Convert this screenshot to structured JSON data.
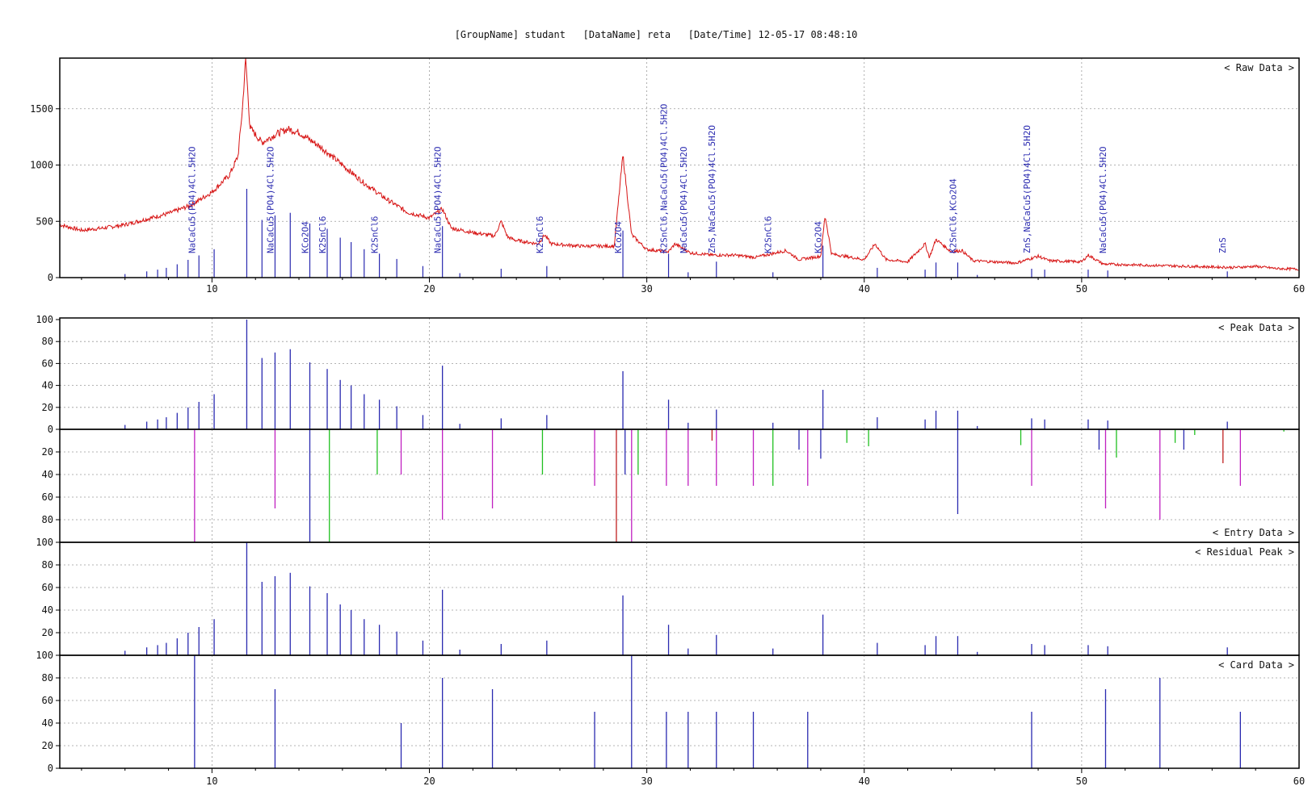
{
  "header": {
    "group_label": "[GroupName]",
    "group_value": "studant",
    "data_label": "[DataName]",
    "data_value": "reta",
    "date_label": "[Date/Time]",
    "date_value": "12-05-17 08:48:10"
  },
  "colors": {
    "raw": "#d71414",
    "card_blue": "#2a2ab0",
    "entry_magenta": "#c020c0",
    "entry_green": "#20c020",
    "entry_red": "#c02020",
    "grid": "#9a9a9a",
    "axis": "#000000"
  },
  "chart_data": [
    {
      "type": "line",
      "panel_label": "< Raw Data >",
      "xlim": [
        3,
        60
      ],
      "ylim": [
        0,
        1950
      ],
      "xticks": [
        10,
        20,
        30,
        40,
        50,
        60
      ],
      "yticks": [
        0,
        500,
        1000,
        1500
      ],
      "raw_profile": [
        [
          3,
          470
        ],
        [
          4,
          420
        ],
        [
          5,
          440
        ],
        [
          6,
          470
        ],
        [
          7,
          520
        ],
        [
          8,
          570
        ],
        [
          9,
          640
        ],
        [
          10,
          760
        ],
        [
          10.8,
          910
        ],
        [
          11.2,
          1080
        ],
        [
          11.4,
          1500
        ],
        [
          11.55,
          1950
        ],
        [
          11.75,
          1330
        ],
        [
          12.3,
          1200
        ],
        [
          13,
          1280
        ],
        [
          13.5,
          1320
        ],
        [
          14,
          1290
        ],
        [
          15,
          1160
        ],
        [
          16,
          1000
        ],
        [
          17,
          840
        ],
        [
          18,
          700
        ],
        [
          19,
          580
        ],
        [
          20,
          530
        ],
        [
          20.6,
          610
        ],
        [
          21,
          440
        ],
        [
          22,
          400
        ],
        [
          23,
          370
        ],
        [
          23.3,
          500
        ],
        [
          23.6,
          360
        ],
        [
          24,
          330
        ],
        [
          25,
          300
        ],
        [
          25.3,
          380
        ],
        [
          25.6,
          300
        ],
        [
          27,
          280
        ],
        [
          28.5,
          280
        ],
        [
          28.9,
          1090
        ],
        [
          29.3,
          380
        ],
        [
          30,
          250
        ],
        [
          31,
          230
        ],
        [
          31.3,
          300
        ],
        [
          32,
          220
        ],
        [
          33,
          200
        ],
        [
          34,
          200
        ],
        [
          35,
          180
        ],
        [
          36.4,
          240
        ],
        [
          37,
          160
        ],
        [
          38,
          190
        ],
        [
          38.2,
          550
        ],
        [
          38.5,
          210
        ],
        [
          40,
          160
        ],
        [
          40.5,
          300
        ],
        [
          41,
          160
        ],
        [
          42,
          140
        ],
        [
          42.8,
          300
        ],
        [
          43,
          180
        ],
        [
          43.3,
          340
        ],
        [
          44,
          230
        ],
        [
          44.5,
          240
        ],
        [
          45,
          150
        ],
        [
          47,
          130
        ],
        [
          48,
          190
        ],
        [
          48.5,
          150
        ],
        [
          50,
          140
        ],
        [
          50.3,
          200
        ],
        [
          51,
          120
        ],
        [
          55,
          100
        ],
        [
          57,
          90
        ],
        [
          58,
          100
        ],
        [
          59,
          80
        ],
        [
          60,
          75
        ]
      ],
      "raw_noise_amplitude": 20,
      "phase_labels": [
        {
          "x": 9.3,
          "text": "NaCaCu5(PO4)4Cl.5H2O"
        },
        {
          "x": 12.9,
          "text": "NaCaCu5(PO4)4Cl.5H2O"
        },
        {
          "x": 14.5,
          "text": "KCo2O4"
        },
        {
          "x": 15.3,
          "text": "K2SnCl6"
        },
        {
          "x": 17.7,
          "text": "K2SnCl6"
        },
        {
          "x": 20.6,
          "text": "NaCaCu5(PO4)4Cl.5H2O"
        },
        {
          "x": 25.3,
          "text": "K2SnCl6"
        },
        {
          "x": 28.9,
          "text": "KCo2O4"
        },
        {
          "x": 31.0,
          "text": "K2SnCl6,NaCaCu5(PO4)4Cl.5H2O"
        },
        {
          "x": 31.9,
          "text": "NaCaCu5(PO4)4Cl.5H2O"
        },
        {
          "x": 33.2,
          "text": "ZnS,NaCaCu5(PO4)4Cl.5H2O"
        },
        {
          "x": 35.8,
          "text": "K2SnCl6"
        },
        {
          "x": 38.1,
          "text": "KCo2O4"
        },
        {
          "x": 44.3,
          "text": "K2SnCl6,KCo2O4"
        },
        {
          "x": 47.7,
          "text": "ZnS,NaCaCu5(PO4)4Cl.5H2O"
        },
        {
          "x": 51.2,
          "text": "NaCaCu5(PO4)4Cl.5H2O"
        },
        {
          "x": 56.7,
          "text": "ZnS"
        }
      ]
    },
    {
      "type": "bar",
      "panel_label": "< Peak Data >",
      "xlim": [
        3,
        60
      ],
      "ylim": [
        0,
        100
      ],
      "yticks": [
        0,
        20,
        40,
        60,
        80,
        100
      ],
      "peaks": [
        [
          6.0,
          4
        ],
        [
          7.0,
          7
        ],
        [
          7.5,
          9
        ],
        [
          7.9,
          11
        ],
        [
          8.4,
          15
        ],
        [
          8.9,
          20
        ],
        [
          9.4,
          25
        ],
        [
          10.1,
          32
        ],
        [
          11.6,
          100
        ],
        [
          12.3,
          65
        ],
        [
          12.9,
          70
        ],
        [
          13.6,
          73
        ],
        [
          14.5,
          61
        ],
        [
          15.3,
          55
        ],
        [
          15.9,
          45
        ],
        [
          16.4,
          40
        ],
        [
          17.0,
          32
        ],
        [
          17.7,
          27
        ],
        [
          18.5,
          21
        ],
        [
          19.7,
          13
        ],
        [
          20.6,
          58
        ],
        [
          21.4,
          5
        ],
        [
          23.3,
          10
        ],
        [
          25.4,
          13
        ],
        [
          28.9,
          53
        ],
        [
          31.0,
          27
        ],
        [
          31.9,
          6
        ],
        [
          33.2,
          18
        ],
        [
          35.8,
          6
        ],
        [
          38.1,
          36
        ],
        [
          40.6,
          11
        ],
        [
          42.8,
          9
        ],
        [
          43.3,
          17
        ],
        [
          44.3,
          17
        ],
        [
          45.2,
          3
        ],
        [
          47.7,
          10
        ],
        [
          48.3,
          9
        ],
        [
          50.3,
          9
        ],
        [
          51.2,
          8
        ],
        [
          56.7,
          7
        ]
      ]
    },
    {
      "type": "bar",
      "panel_label": "< Entry Data >",
      "xlim": [
        3,
        60
      ],
      "ylim": [
        0,
        100
      ],
      "yticks": [
        0,
        20,
        40,
        60,
        80
      ],
      "entries": [
        {
          "x": 9.2,
          "v": 100,
          "c": "magenta"
        },
        {
          "x": 12.9,
          "v": 70,
          "c": "magenta"
        },
        {
          "x": 14.5,
          "v": 100,
          "c": "blue"
        },
        {
          "x": 15.4,
          "v": 100,
          "c": "green"
        },
        {
          "x": 17.6,
          "v": 40,
          "c": "green"
        },
        {
          "x": 18.7,
          "v": 40,
          "c": "magenta"
        },
        {
          "x": 20.6,
          "v": 80,
          "c": "magenta"
        },
        {
          "x": 22.9,
          "v": 70,
          "c": "magenta"
        },
        {
          "x": 25.2,
          "v": 40,
          "c": "green"
        },
        {
          "x": 27.6,
          "v": 50,
          "c": "magenta"
        },
        {
          "x": 28.6,
          "v": 100,
          "c": "red"
        },
        {
          "x": 29.0,
          "v": 40,
          "c": "blue"
        },
        {
          "x": 29.3,
          "v": 100,
          "c": "magenta"
        },
        {
          "x": 29.6,
          "v": 40,
          "c": "green"
        },
        {
          "x": 30.9,
          "v": 50,
          "c": "magenta"
        },
        {
          "x": 31.9,
          "v": 50,
          "c": "magenta"
        },
        {
          "x": 33.0,
          "v": 10,
          "c": "red"
        },
        {
          "x": 33.2,
          "v": 50,
          "c": "magenta"
        },
        {
          "x": 34.9,
          "v": 50,
          "c": "magenta"
        },
        {
          "x": 35.8,
          "v": 50,
          "c": "green"
        },
        {
          "x": 37.0,
          "v": 18,
          "c": "blue"
        },
        {
          "x": 37.4,
          "v": 50,
          "c": "magenta"
        },
        {
          "x": 38.0,
          "v": 26,
          "c": "blue"
        },
        {
          "x": 39.2,
          "v": 12,
          "c": "green"
        },
        {
          "x": 40.2,
          "v": 15,
          "c": "green"
        },
        {
          "x": 44.3,
          "v": 75,
          "c": "blue"
        },
        {
          "x": 47.2,
          "v": 14,
          "c": "green"
        },
        {
          "x": 47.7,
          "v": 50,
          "c": "magenta"
        },
        {
          "x": 50.8,
          "v": 18,
          "c": "blue"
        },
        {
          "x": 51.1,
          "v": 70,
          "c": "magenta"
        },
        {
          "x": 51.6,
          "v": 25,
          "c": "green"
        },
        {
          "x": 53.6,
          "v": 80,
          "c": "magenta"
        },
        {
          "x": 54.3,
          "v": 12,
          "c": "green"
        },
        {
          "x": 54.7,
          "v": 18,
          "c": "blue"
        },
        {
          "x": 55.2,
          "v": 5,
          "c": "green"
        },
        {
          "x": 56.5,
          "v": 30,
          "c": "red"
        },
        {
          "x": 57.3,
          "v": 50,
          "c": "magenta"
        },
        {
          "x": 59.3,
          "v": 2,
          "c": "green"
        }
      ]
    },
    {
      "type": "bar",
      "panel_label": "< Residual Peak >",
      "xlim": [
        3,
        60
      ],
      "ylim": [
        0,
        100
      ],
      "yticks": [
        20,
        40,
        60,
        80,
        100
      ],
      "peaks": [
        [
          6.0,
          4
        ],
        [
          7.0,
          7
        ],
        [
          7.5,
          9
        ],
        [
          7.9,
          11
        ],
        [
          8.4,
          15
        ],
        [
          8.9,
          20
        ],
        [
          9.4,
          25
        ],
        [
          10.1,
          32
        ],
        [
          11.6,
          100
        ],
        [
          12.3,
          65
        ],
        [
          12.9,
          70
        ],
        [
          13.6,
          73
        ],
        [
          14.5,
          61
        ],
        [
          15.3,
          55
        ],
        [
          15.9,
          45
        ],
        [
          16.4,
          40
        ],
        [
          17.0,
          32
        ],
        [
          17.7,
          27
        ],
        [
          18.5,
          21
        ],
        [
          19.7,
          13
        ],
        [
          20.6,
          58
        ],
        [
          21.4,
          5
        ],
        [
          23.3,
          10
        ],
        [
          25.4,
          13
        ],
        [
          28.9,
          53
        ],
        [
          31.0,
          27
        ],
        [
          31.9,
          6
        ],
        [
          33.2,
          18
        ],
        [
          35.8,
          6
        ],
        [
          38.1,
          36
        ],
        [
          40.6,
          11
        ],
        [
          42.8,
          9
        ],
        [
          43.3,
          17
        ],
        [
          44.3,
          17
        ],
        [
          45.2,
          3
        ],
        [
          47.7,
          10
        ],
        [
          48.3,
          9
        ],
        [
          50.3,
          9
        ],
        [
          51.2,
          8
        ],
        [
          56.7,
          7
        ]
      ]
    },
    {
      "type": "bar",
      "panel_label": "< Card Data >",
      "xlim": [
        3,
        60
      ],
      "ylim": [
        0,
        100
      ],
      "xticks": [
        10,
        20,
        30,
        40,
        50,
        60
      ],
      "yticks": [
        0,
        20,
        40,
        60,
        80,
        100
      ],
      "peaks": [
        [
          9.2,
          100
        ],
        [
          12.9,
          70
        ],
        [
          18.7,
          40
        ],
        [
          20.6,
          80
        ],
        [
          22.9,
          70
        ],
        [
          27.6,
          50
        ],
        [
          29.3,
          100
        ],
        [
          30.9,
          50
        ],
        [
          31.9,
          50
        ],
        [
          33.2,
          50
        ],
        [
          34.9,
          50
        ],
        [
          37.4,
          50
        ],
        [
          47.7,
          50
        ],
        [
          51.1,
          70
        ],
        [
          53.6,
          80
        ],
        [
          57.3,
          50
        ]
      ]
    }
  ]
}
